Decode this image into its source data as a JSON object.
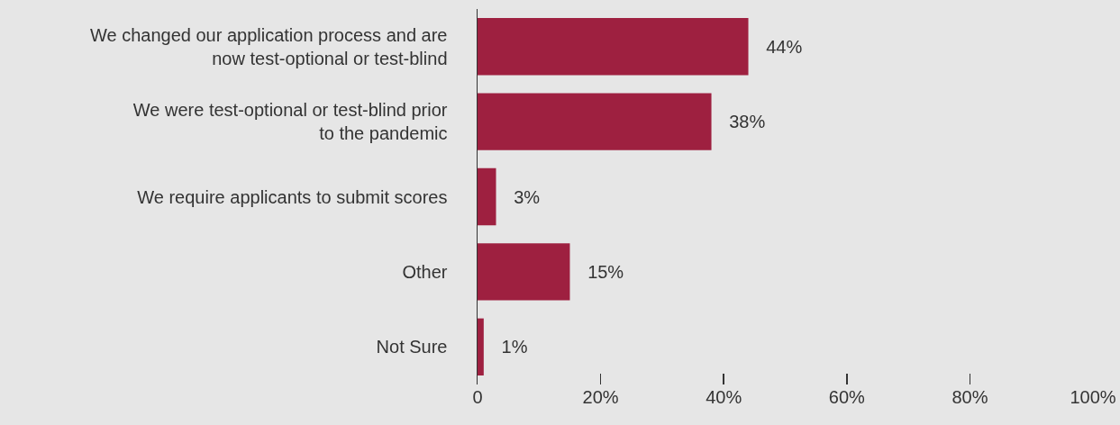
{
  "chart_data": {
    "type": "bar",
    "orientation": "horizontal",
    "categories": [
      "We changed our application process and are now test-optional or test-blind",
      "We were test-optional or test-blind prior to the pandemic",
      "We require applicants to submit scores",
      "Other",
      "Not Sure"
    ],
    "values": [
      44,
      38,
      3,
      15,
      1
    ],
    "value_labels": [
      "44%",
      "38%",
      "3%",
      "15%",
      "1%"
    ],
    "color": "#9e2040",
    "xlim": [
      0,
      100
    ],
    "xticks": [
      0,
      {
        "value": 20,
        "label": "20%"
      },
      {
        "value": 40,
        "label": "40%"
      },
      {
        "value": 60,
        "label": "60%"
      },
      {
        "value": 80,
        "label": "80%"
      },
      {
        "value": 100,
        "label": "100%"
      }
    ],
    "grid": false
  }
}
